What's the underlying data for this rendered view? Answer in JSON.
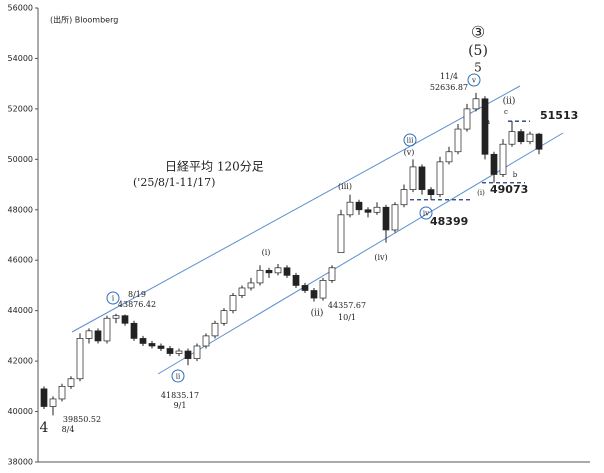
{
  "chart_data": {
    "type": "candlestick",
    "source": "(出所) Bloomberg",
    "title": "日経平均 120分足",
    "subtitle": "('25/8/1-11/17)",
    "ylim": [
      38000,
      56000
    ],
    "yticks": [
      38000,
      40000,
      42000,
      44000,
      46000,
      48000,
      50000,
      52000,
      54000,
      56000
    ],
    "color_up": "#ffffff",
    "color_down": "#222222",
    "open": [
      40900,
      40200,
      40500,
      41000,
      41300,
      42900,
      43200,
      42800,
      43700,
      43800,
      43500,
      42900,
      42700,
      42600,
      42500,
      42300,
      42400,
      42100,
      42600,
      43000,
      43500,
      44000,
      44600,
      44900,
      45100,
      45600,
      45500,
      45700,
      45400,
      45000,
      44800,
      44500,
      45200,
      46300,
      47800,
      48300,
      48000,
      47900,
      48100,
      47200,
      48200,
      48800,
      49700,
      48800,
      48600,
      49900,
      50300,
      51200,
      52000,
      52400,
      50200,
      49400,
      50600,
      51100,
      50700,
      51000
    ],
    "high": [
      41000,
      40600,
      41100,
      41400,
      43100,
      43300,
      43300,
      43800,
      43876,
      43850,
      43600,
      43000,
      42800,
      42700,
      42600,
      42500,
      42500,
      42700,
      43100,
      43600,
      44100,
      44700,
      45000,
      45300,
      45800,
      45700,
      45850,
      45800,
      45500,
      45100,
      44900,
      45300,
      45800,
      48000,
      48600,
      48400,
      48100,
      48300,
      48200,
      48300,
      49000,
      50000,
      49800,
      48900,
      50100,
      50500,
      51400,
      52200,
      52636,
      52500,
      50300,
      50800,
      51513,
      51200,
      51100,
      51050
    ],
    "low": [
      40100,
      39850,
      40400,
      40900,
      41200,
      42700,
      42700,
      42700,
      43500,
      43400,
      42800,
      42600,
      42500,
      42400,
      42200,
      42200,
      41835,
      42000,
      42500,
      42900,
      43400,
      43900,
      44500,
      44800,
      45000,
      45300,
      45400,
      45300,
      44900,
      44700,
      44357,
      44400,
      45100,
      46300,
      47700,
      47800,
      47700,
      47800,
      46700,
      47100,
      48100,
      48700,
      48600,
      48400,
      48500,
      49800,
      50200,
      51100,
      51900,
      50000,
      49073,
      49300,
      50500,
      50600,
      50600,
      50200
    ],
    "close": [
      40200,
      40500,
      41000,
      41300,
      42900,
      43200,
      42800,
      43700,
      43800,
      43500,
      42900,
      42700,
      42600,
      42500,
      42300,
      42400,
      42100,
      42600,
      43000,
      43500,
      44000,
      44600,
      44900,
      45100,
      45600,
      45500,
      45700,
      45400,
      45000,
      44800,
      44500,
      45200,
      45700,
      47800,
      48300,
      48000,
      47900,
      48100,
      47200,
      48200,
      48800,
      49700,
      48800,
      48600,
      49900,
      50300,
      51200,
      52000,
      52400,
      50200,
      49400,
      50600,
      51100,
      50700,
      51000,
      50400
    ],
    "levels": [
      51513,
      49073,
      48399
    ],
    "level_color": "#1f3a7a",
    "annotations": [
      "39850.52",
      "8/4",
      "4",
      "8/19",
      "43876.42",
      "41835.17",
      "9/1",
      "(i)",
      "(ii)",
      "44357.67",
      "10/1",
      "(iii)",
      "(iv)",
      "(v)",
      "11/4",
      "52636.87",
      "③",
      "(5)",
      "5",
      "(ii)",
      "a",
      "b",
      "c",
      "(i)"
    ],
    "wave_marks": [
      "i",
      "ii",
      "iii",
      "iv",
      "v"
    ]
  }
}
